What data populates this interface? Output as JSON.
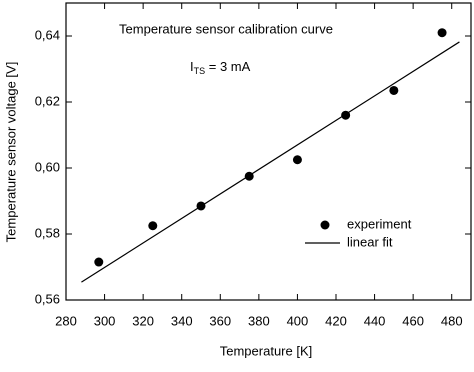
{
  "chart_data": {
    "type": "scatter",
    "title": "Temperature sensor calibration curve",
    "annotation": {
      "main": "I",
      "sub": "TS",
      "rest": " = 3 mA"
    },
    "x_label": "Temperature [K]",
    "y_label": "Temperature sensor voltage [V]",
    "xlim": [
      280,
      490
    ],
    "xticks": [
      280,
      300,
      320,
      340,
      360,
      380,
      400,
      420,
      440,
      460,
      480
    ],
    "ylim": [
      0.56,
      0.65
    ],
    "yticks": [
      {
        "value": 0.56,
        "label": "0,56"
      },
      {
        "value": 0.58,
        "label": "0,58"
      },
      {
        "value": 0.6,
        "label": "0,60"
      },
      {
        "value": 0.62,
        "label": "0,62"
      },
      {
        "value": 0.64,
        "label": "0,64"
      }
    ],
    "legend": "right",
    "series": [
      {
        "name": "experiment",
        "kind": "points",
        "color": "#000000",
        "x": [
          297,
          325,
          350,
          375,
          400,
          425,
          450,
          475
        ],
        "values": [
          0.5715,
          0.5825,
          0.5885,
          0.5975,
          0.6025,
          0.616,
          0.6235,
          0.641
        ]
      },
      {
        "name": "linear fit",
        "kind": "line",
        "color": "#000000",
        "x": [
          288,
          484
        ],
        "values": [
          0.5654,
          0.6382
        ]
      }
    ]
  }
}
